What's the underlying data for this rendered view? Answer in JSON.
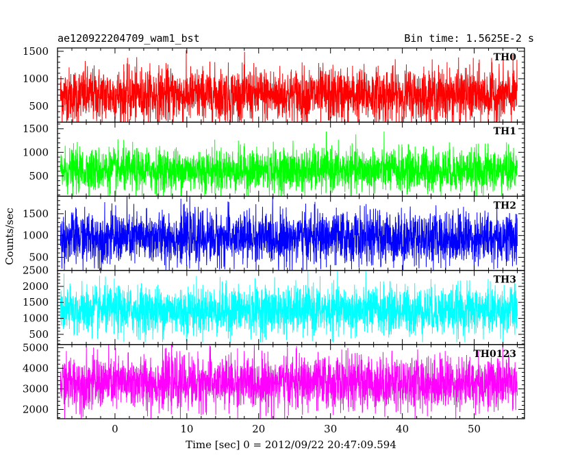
{
  "title_left": "ae120922204709_wam1_bst",
  "title_right": "Bin time: 1.5625E-2 s",
  "ylabel": "Counts/sec",
  "xlabel": "Time [sec] 0 = 2012/09/22 20:47:09.594",
  "chart_data": {
    "type": "line",
    "xlim": [
      -8,
      57
    ],
    "x_ticks": [
      0,
      10,
      20,
      30,
      40,
      50
    ],
    "x_minor_step": 2,
    "data_x_range": [
      -7.6,
      56
    ],
    "panels": [
      {
        "name": "TH0",
        "color": "#ff0000",
        "ylim": [
          210,
          1560
        ],
        "y_ticks": [
          500,
          1000,
          1500
        ],
        "y_minor_step": 100,
        "mean": 700,
        "sd": 250,
        "min": 200,
        "max": 1560
      },
      {
        "name": "TH1",
        "color": "#00ff00",
        "ylim": [
          70,
          1640
        ],
        "y_ticks": [
          500,
          1000,
          1500
        ],
        "y_minor_step": 100,
        "mean": 620,
        "sd": 230,
        "min": 80,
        "max": 1640
      },
      {
        "name": "TH2",
        "color": "#0000ff",
        "ylim": [
          200,
          1900
        ],
        "y_ticks": [
          500,
          1000,
          1500
        ],
        "y_minor_step": 100,
        "mean": 950,
        "sd": 300,
        "min": 200,
        "max": 1900
      },
      {
        "name": "TH3",
        "color": "#00ffff",
        "ylim": [
          180,
          2500
        ],
        "y_ticks": [
          500,
          1000,
          1500,
          2000,
          2500
        ],
        "y_minor_step": 100,
        "mean": 1250,
        "sd": 380,
        "min": 250,
        "max": 2500
      },
      {
        "name": "TH0123",
        "color": "#ff00ff",
        "ylim": [
          1550,
          5150
        ],
        "y_ticks": [
          2000,
          3000,
          4000,
          5000
        ],
        "y_minor_step": 200,
        "mean": 3300,
        "sd": 650,
        "min": 1550,
        "max": 5150
      }
    ]
  }
}
